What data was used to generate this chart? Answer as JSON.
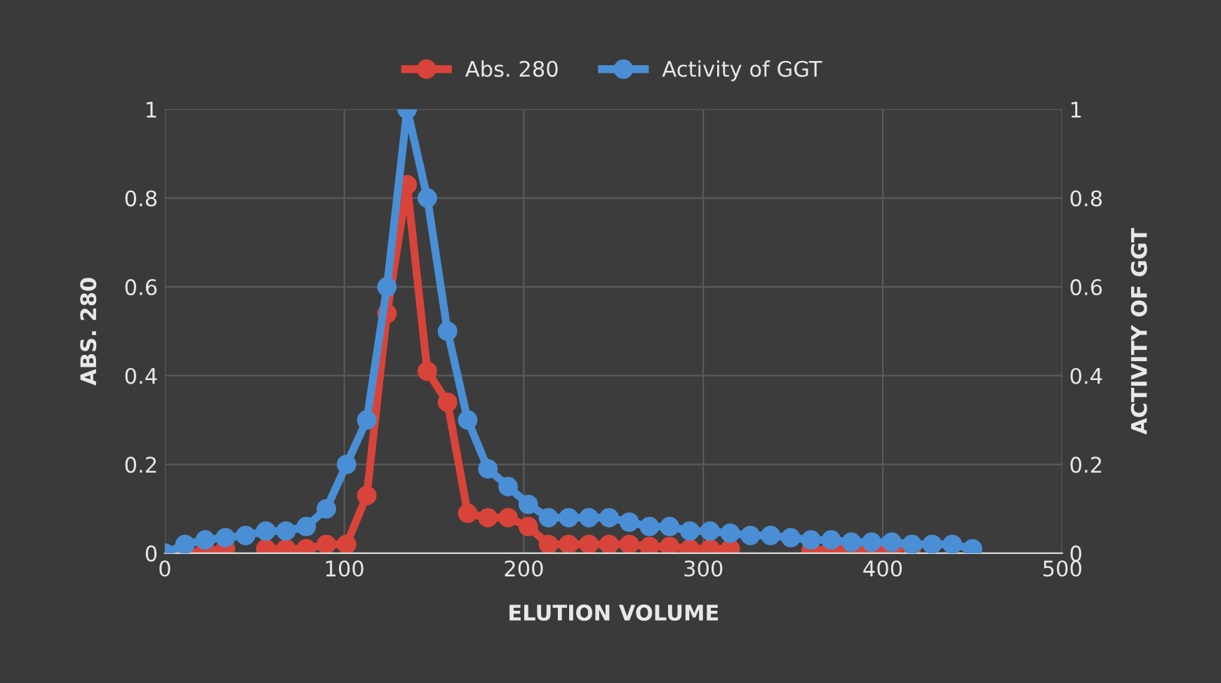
{
  "chart_data": {
    "type": "line",
    "xlabel": "ELUTION VOLUME",
    "ylabel": "ABS. 280",
    "y2label": "ACTIVITY OF GGT",
    "x": [
      0,
      11.25,
      22.5,
      33.75,
      45,
      56.25,
      67.5,
      78.75,
      90,
      101.25,
      112.5,
      123.75,
      135,
      146.25,
      157.5,
      168.75,
      180,
      191.25,
      202.5,
      213.75,
      225,
      236.25,
      247.5,
      258.75,
      270,
      281.25,
      292.5,
      303.75,
      315,
      326.25,
      337.5,
      348.75,
      360,
      371.25,
      382.5,
      393.75,
      405,
      416.25,
      427.5,
      438.75,
      450
    ],
    "series": [
      {
        "name": "Abs. 280",
        "color": "#d9443a",
        "values": [
          0,
          0,
          0.005,
          0.01,
          null,
          0.01,
          0.01,
          0.01,
          0.02,
          0.02,
          0.13,
          0.54,
          0.83,
          0.41,
          0.34,
          0.09,
          0.08,
          0.08,
          0.06,
          0.02,
          0.02,
          0.02,
          0.02,
          0.02,
          0.015,
          0.015,
          0.01,
          0.01,
          0.01,
          null,
          null,
          null,
          0.005,
          0.01,
          0.01,
          0.01,
          0.01,
          0.015,
          null,
          null,
          null
        ]
      },
      {
        "name": "Activity of GGT",
        "color": "#4a8fd6",
        "axis": "y2",
        "values": [
          0,
          0.02,
          0.03,
          0.035,
          0.04,
          0.05,
          0.05,
          0.06,
          0.1,
          0.2,
          0.3,
          0.6,
          1.0,
          0.8,
          0.5,
          0.3,
          0.19,
          0.15,
          0.11,
          0.08,
          0.08,
          0.08,
          0.08,
          0.07,
          0.06,
          0.06,
          0.05,
          0.05,
          0.045,
          0.04,
          0.04,
          0.035,
          0.03,
          0.03,
          0.025,
          0.025,
          0.025,
          0.02,
          0.02,
          0.02,
          0.01
        ]
      }
    ],
    "xlim": [
      0,
      500
    ],
    "xticks": [
      0,
      100,
      200,
      300,
      400,
      500
    ],
    "ylim": [
      0,
      1
    ],
    "yticks": [
      0,
      0.2,
      0.4,
      0.6,
      0.8,
      1
    ],
    "y2lim": [
      0,
      1
    ],
    "y2ticks": [
      0,
      0.2,
      0.4,
      0.6,
      0.8,
      1
    ],
    "grid": true,
    "legend": "top",
    "marker": "circle",
    "line_style": "solid"
  }
}
